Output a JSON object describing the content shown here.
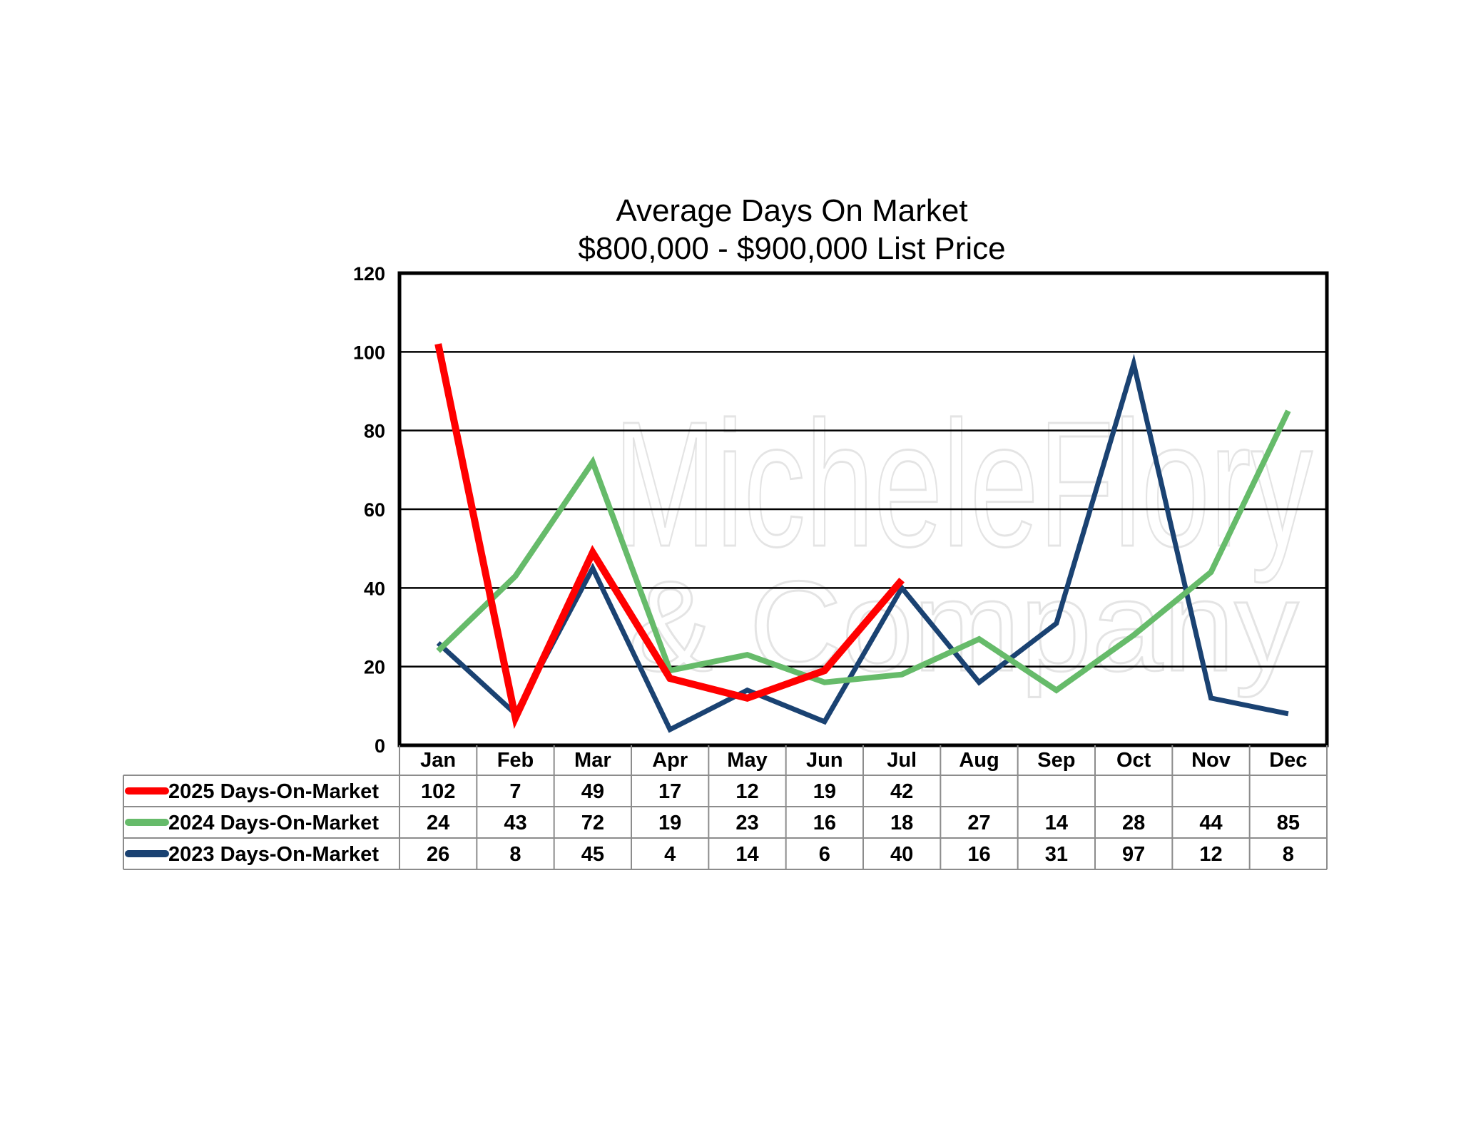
{
  "chart_data": {
    "type": "line",
    "title": "Average Days On Market",
    "subtitle": "$800,000 - $900,000 List Price",
    "categories": [
      "Jan",
      "Feb",
      "Mar",
      "Apr",
      "May",
      "Jun",
      "Jul",
      "Aug",
      "Sep",
      "Oct",
      "Nov",
      "Dec"
    ],
    "ylim": [
      0,
      120
    ],
    "yticks": [
      0,
      20,
      40,
      60,
      80,
      100,
      120
    ],
    "grid": true,
    "legend": "data-table-left",
    "series": [
      {
        "name": "2025 Days-On-Market",
        "color": "#ff0000",
        "values": [
          102,
          7,
          49,
          17,
          12,
          19,
          42,
          null,
          null,
          null,
          null,
          null
        ]
      },
      {
        "name": "2024 Days-On-Market",
        "color": "#66bb6a",
        "values": [
          24,
          43,
          72,
          19,
          23,
          16,
          18,
          27,
          14,
          28,
          44,
          85
        ]
      },
      {
        "name": "2023 Days-On-Market",
        "color": "#1a4272",
        "values": [
          26,
          8,
          45,
          4,
          14,
          6,
          40,
          16,
          31,
          97,
          12,
          8
        ]
      }
    ]
  },
  "watermark": {
    "line1": "MicheleFlory",
    "line2": "& Company"
  }
}
